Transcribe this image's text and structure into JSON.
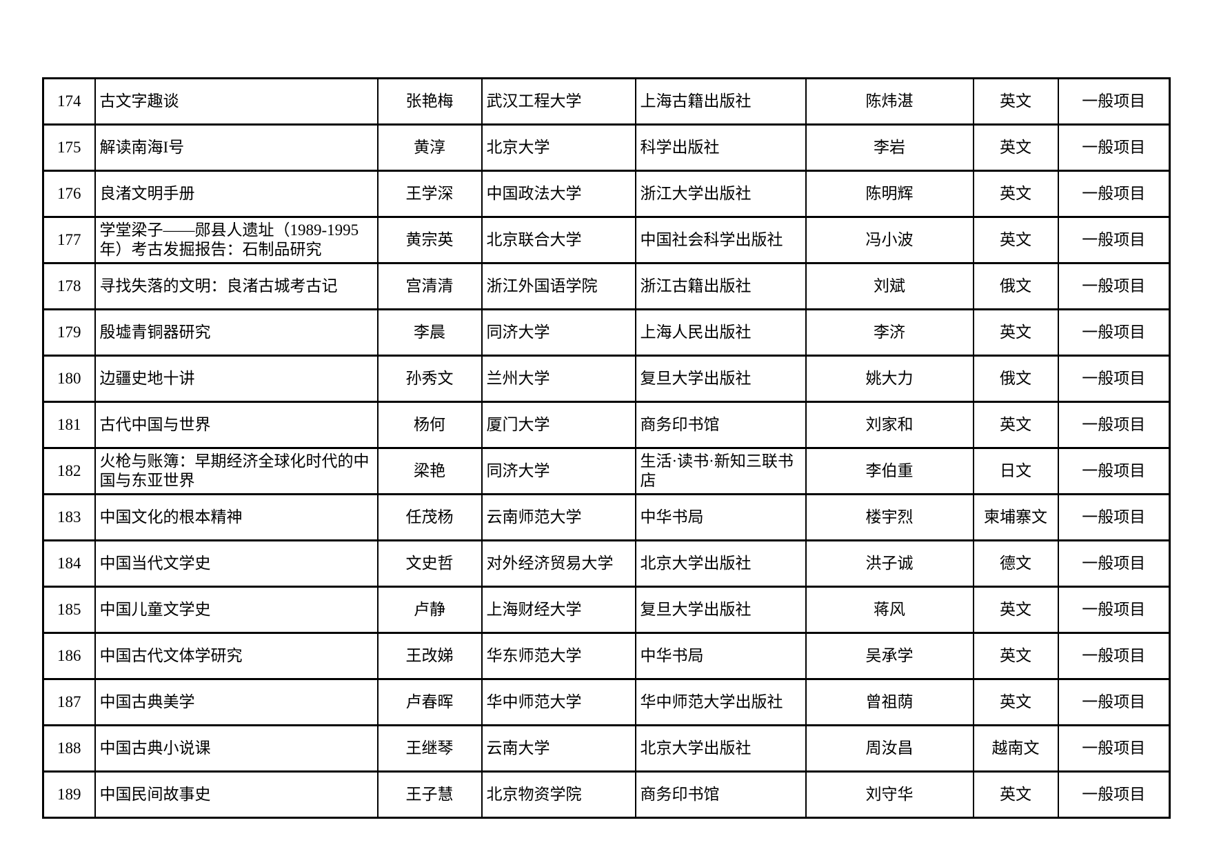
{
  "colors": {
    "background": "#ffffff",
    "border": "#000000",
    "text": "#000000"
  },
  "table": {
    "col_keys": [
      "no",
      "title",
      "name_a",
      "organization",
      "publisher",
      "name_b",
      "language",
      "project_type"
    ],
    "rows": [
      {
        "no": "174",
        "title": "古文字趣谈",
        "name_a": "张艳梅",
        "organization": "武汉工程大学",
        "publisher": "上海古籍出版社",
        "name_b": "陈炜湛",
        "language": "英文",
        "project_type": "一般项目"
      },
      {
        "no": "175",
        "title": "解读南海I号",
        "name_a": "黄淳",
        "organization": "北京大学",
        "publisher": "科学出版社",
        "name_b": "李岩",
        "language": "英文",
        "project_type": "一般项目"
      },
      {
        "no": "176",
        "title": "良渚文明手册",
        "name_a": "王学深",
        "organization": "中国政法大学",
        "publisher": "浙江大学出版社",
        "name_b": "陈明辉",
        "language": "英文",
        "project_type": "一般项目"
      },
      {
        "no": "177",
        "title": "学堂梁子——郧县人遗址（1989-1995年）考古发掘报告：石制品研究",
        "name_a": "黄宗英",
        "organization": "北京联合大学",
        "publisher": "中国社会科学出版社",
        "name_b": "冯小波",
        "language": "英文",
        "project_type": "一般项目"
      },
      {
        "no": "178",
        "title": "寻找失落的文明：良渚古城考古记",
        "name_a": "宫清清",
        "organization": "浙江外国语学院",
        "publisher": "浙江古籍出版社",
        "name_b": "刘斌",
        "language": "俄文",
        "project_type": "一般项目"
      },
      {
        "no": "179",
        "title": "殷墟青铜器研究",
        "name_a": "李晨",
        "organization": "同济大学",
        "publisher": "上海人民出版社",
        "name_b": "李济",
        "language": "英文",
        "project_type": "一般项目"
      },
      {
        "no": "180",
        "title": "边疆史地十讲",
        "name_a": "孙秀文",
        "organization": "兰州大学",
        "publisher": "复旦大学出版社",
        "name_b": "姚大力",
        "language": "俄文",
        "project_type": "一般项目"
      },
      {
        "no": "181",
        "title": "古代中国与世界",
        "name_a": "杨何",
        "organization": "厦门大学",
        "publisher": "商务印书馆",
        "name_b": "刘家和",
        "language": "英文",
        "project_type": "一般项目"
      },
      {
        "no": "182",
        "title": "火枪与账簿：早期经济全球化时代的中国与东亚世界",
        "name_a": "梁艳",
        "organization": "同济大学",
        "publisher": "生活·读书·新知三联书店",
        "name_b": "李伯重",
        "language": "日文",
        "project_type": "一般项目"
      },
      {
        "no": "183",
        "title": "中国文化的根本精神",
        "name_a": "任茂杨",
        "organization": "云南师范大学",
        "publisher": "中华书局",
        "name_b": "楼宇烈",
        "language": "柬埔寨文",
        "project_type": "一般项目"
      },
      {
        "no": "184",
        "title": "中国当代文学史",
        "name_a": "文史哲",
        "organization": "对外经济贸易大学",
        "publisher": "北京大学出版社",
        "name_b": "洪子诚",
        "language": "德文",
        "project_type": "一般项目"
      },
      {
        "no": "185",
        "title": "中国儿童文学史",
        "name_a": "卢静",
        "organization": "上海财经大学",
        "publisher": "复旦大学出版社",
        "name_b": "蒋风",
        "language": "英文",
        "project_type": "一般项目"
      },
      {
        "no": "186",
        "title": "中国古代文体学研究",
        "name_a": "王改娣",
        "organization": "华东师范大学",
        "publisher": "中华书局",
        "name_b": "吴承学",
        "language": "英文",
        "project_type": "一般项目"
      },
      {
        "no": "187",
        "title": "中国古典美学",
        "name_a": "卢春晖",
        "organization": "华中师范大学",
        "publisher": "华中师范大学出版社",
        "name_b": "曾祖荫",
        "language": "英文",
        "project_type": "一般项目"
      },
      {
        "no": "188",
        "title": "中国古典小说课",
        "name_a": "王继琴",
        "organization": "云南大学",
        "publisher": "北京大学出版社",
        "name_b": "周汝昌",
        "language": "越南文",
        "project_type": "一般项目"
      },
      {
        "no": "189",
        "title": "中国民间故事史",
        "name_a": "王子慧",
        "organization": "北京物资学院",
        "publisher": "商务印书馆",
        "name_b": "刘守华",
        "language": "英文",
        "project_type": "一般项目"
      }
    ]
  }
}
